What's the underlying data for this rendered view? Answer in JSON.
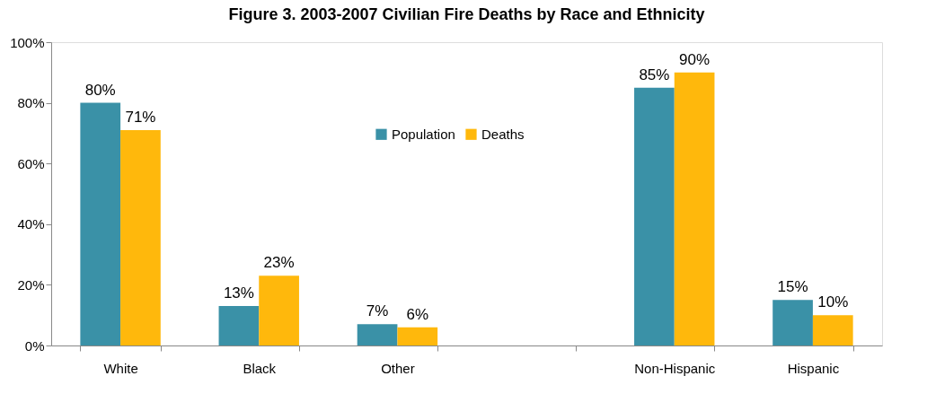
{
  "chart_data": {
    "type": "bar",
    "title": "Figure 3. 2003-2007 Civilian Fire Deaths by Race and Ethnicity",
    "categories": [
      "White",
      "Black",
      "Other",
      null,
      "Non-Hispanic",
      "Hispanic"
    ],
    "series": [
      {
        "name": "Population",
        "color": "#3a91a7",
        "values": [
          80,
          13,
          7,
          null,
          85,
          15
        ],
        "value_labels": [
          "80%",
          "13%",
          "7%",
          null,
          "85%",
          "15%"
        ]
      },
      {
        "name": "Deaths",
        "color": "#ffb80c",
        "values": [
          71,
          23,
          6,
          null,
          90,
          10
        ],
        "value_labels": [
          "71%",
          "23%",
          "6%",
          null,
          "90%",
          "10%"
        ]
      }
    ],
    "ylim": [
      0,
      100
    ],
    "yticks": [
      {
        "value": 0,
        "label": "0%"
      },
      {
        "value": 20,
        "label": "20%"
      },
      {
        "value": 40,
        "label": "40%"
      },
      {
        "value": 60,
        "label": "60%"
      },
      {
        "value": 80,
        "label": "80%"
      },
      {
        "value": 100,
        "label": "100%"
      }
    ],
    "grid": false,
    "legend": "top"
  }
}
